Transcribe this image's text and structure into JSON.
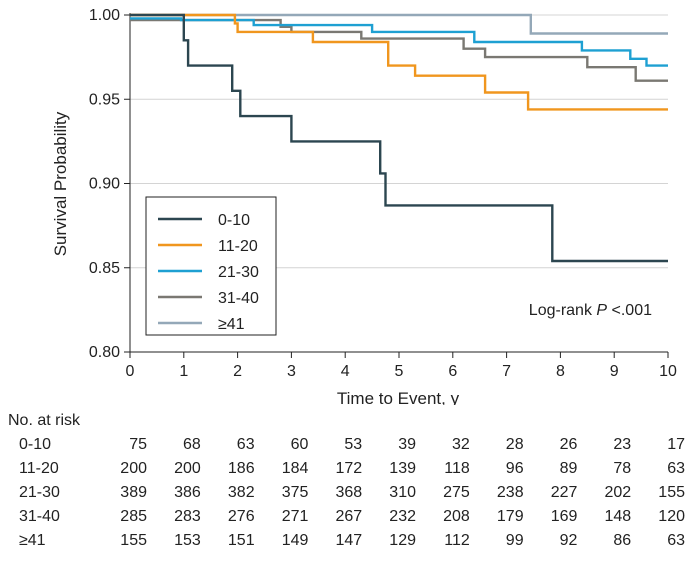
{
  "chart_data": {
    "type": "line",
    "step": true,
    "xlabel": "Time to Event, y",
    "ylabel": "Survival Probability",
    "xlim": [
      0,
      10
    ],
    "ylim": [
      0.8,
      1.0
    ],
    "xticks": [
      "0",
      "1",
      "2",
      "3",
      "4",
      "5",
      "6",
      "7",
      "8",
      "9",
      "10"
    ],
    "yticks": [
      "0.80",
      "0.85",
      "0.90",
      "0.95",
      "1.00"
    ],
    "grid": "horizontal",
    "legend_position": "bottom-left",
    "annotation": {
      "prefix": "Log-rank ",
      "italic": "P",
      "suffix": " <.001"
    },
    "series": [
      {
        "name": "0-10",
        "color": "#2c4650",
        "points": [
          [
            0,
            1.0
          ],
          [
            1.0,
            1.0
          ],
          [
            1.0,
            0.985
          ],
          [
            1.08,
            0.985
          ],
          [
            1.08,
            0.97
          ],
          [
            1.9,
            0.97
          ],
          [
            1.9,
            0.955
          ],
          [
            2.05,
            0.955
          ],
          [
            2.05,
            0.94
          ],
          [
            3.0,
            0.94
          ],
          [
            3.0,
            0.925
          ],
          [
            4.65,
            0.925
          ],
          [
            4.65,
            0.906
          ],
          [
            4.75,
            0.906
          ],
          [
            4.75,
            0.887
          ],
          [
            7.85,
            0.887
          ],
          [
            7.85,
            0.854
          ],
          [
            10,
            0.854
          ]
        ]
      },
      {
        "name": "11-20",
        "color": "#f0961e",
        "points": [
          [
            0,
            1.0
          ],
          [
            1.95,
            1.0
          ],
          [
            1.95,
            0.995
          ],
          [
            2.0,
            0.995
          ],
          [
            2.0,
            0.99
          ],
          [
            3.4,
            0.99
          ],
          [
            3.4,
            0.984
          ],
          [
            4.8,
            0.984
          ],
          [
            4.8,
            0.97
          ],
          [
            5.3,
            0.97
          ],
          [
            5.3,
            0.964
          ],
          [
            6.6,
            0.964
          ],
          [
            6.6,
            0.954
          ],
          [
            7.4,
            0.954
          ],
          [
            7.4,
            0.944
          ],
          [
            10,
            0.944
          ]
        ]
      },
      {
        "name": "21-30",
        "color": "#1ea0d2",
        "points": [
          [
            0,
            0.998
          ],
          [
            0.95,
            0.998
          ],
          [
            0.95,
            0.997
          ],
          [
            2.3,
            0.997
          ],
          [
            2.3,
            0.994
          ],
          [
            4.5,
            0.994
          ],
          [
            4.5,
            0.99
          ],
          [
            6.4,
            0.99
          ],
          [
            6.4,
            0.984
          ],
          [
            8.4,
            0.984
          ],
          [
            8.4,
            0.979
          ],
          [
            9.3,
            0.979
          ],
          [
            9.3,
            0.974
          ],
          [
            9.6,
            0.974
          ],
          [
            9.6,
            0.97
          ],
          [
            10,
            0.97
          ]
        ]
      },
      {
        "name": "31-40",
        "color": "#7a7872",
        "points": [
          [
            0,
            0.997
          ],
          [
            2.8,
            0.997
          ],
          [
            2.8,
            0.993
          ],
          [
            3.0,
            0.993
          ],
          [
            3.0,
            0.99
          ],
          [
            4.3,
            0.99
          ],
          [
            4.3,
            0.986
          ],
          [
            6.2,
            0.986
          ],
          [
            6.2,
            0.98
          ],
          [
            6.6,
            0.98
          ],
          [
            6.6,
            0.975
          ],
          [
            8.5,
            0.975
          ],
          [
            8.5,
            0.969
          ],
          [
            9.4,
            0.969
          ],
          [
            9.4,
            0.961
          ],
          [
            10,
            0.961
          ]
        ]
      },
      {
        "name": "≥41",
        "color": "#94a8b8",
        "points": [
          [
            0,
            1.0
          ],
          [
            7.45,
            1.0
          ],
          [
            7.45,
            0.989
          ],
          [
            10,
            0.989
          ]
        ]
      }
    ]
  },
  "risk_table": {
    "title": "No. at risk",
    "rows": [
      {
        "label": "0-10",
        "values": [
          "75",
          "68",
          "63",
          "60",
          "53",
          "39",
          "32",
          "28",
          "26",
          "23",
          "17"
        ]
      },
      {
        "label": "11-20",
        "values": [
          "200",
          "200",
          "186",
          "184",
          "172",
          "139",
          "118",
          "96",
          "89",
          "78",
          "63"
        ]
      },
      {
        "label": "21-30",
        "values": [
          "389",
          "386",
          "382",
          "375",
          "368",
          "310",
          "275",
          "238",
          "227",
          "202",
          "155"
        ]
      },
      {
        "label": "31-40",
        "values": [
          "285",
          "283",
          "276",
          "271",
          "267",
          "232",
          "208",
          "179",
          "169",
          "148",
          "120"
        ]
      },
      {
        "label": "≥41",
        "values": [
          "155",
          "153",
          "151",
          "149",
          "147",
          "129",
          "112",
          "99",
          "92",
          "86",
          "63"
        ]
      }
    ]
  }
}
